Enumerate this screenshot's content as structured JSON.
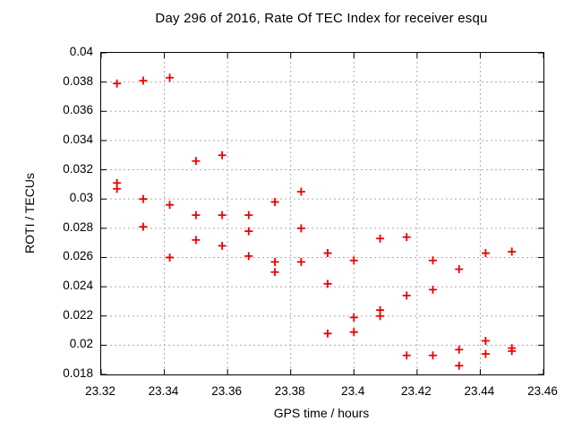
{
  "chart_data": {
    "type": "scatter",
    "title": "Day 296 of 2016, Rate Of TEC Index for receiver esqu",
    "xlabel": "GPS time / hours",
    "ylabel": "ROTI / TECUs",
    "xlim": [
      23.32,
      23.46
    ],
    "ylim": [
      0.018,
      0.04
    ],
    "x_tick_values": [
      23.32,
      23.34,
      23.36,
      23.38,
      23.4,
      23.42,
      23.44,
      23.46
    ],
    "x_tick_labels": [
      "23.32",
      "23.34",
      "23.36",
      "23.38",
      "23.4",
      "23.42",
      "23.44",
      "23.46"
    ],
    "y_tick_values": [
      0.04,
      0.038,
      0.036,
      0.034,
      0.032,
      0.03,
      0.028,
      0.026,
      0.024,
      0.022,
      0.02,
      0.018
    ],
    "y_tick_labels": [
      "0.04",
      "0.038",
      "0.036",
      "0.034",
      "0.032",
      "0.03",
      "0.028",
      "0.026",
      "0.024",
      "0.022",
      "0.02",
      "0.018"
    ],
    "grid": true,
    "legend": "none",
    "marker": "plus",
    "marker_color": "#ee0000",
    "grid_color": "#ababab",
    "frame_color": "#000000",
    "series": [
      {
        "name": "ROTI",
        "points": [
          [
            23.325,
            0.0379
          ],
          [
            23.325,
            0.0311
          ],
          [
            23.325,
            0.0307
          ],
          [
            23.3333,
            0.0381
          ],
          [
            23.3333,
            0.03
          ],
          [
            23.3333,
            0.0281
          ],
          [
            23.3417,
            0.0383
          ],
          [
            23.3417,
            0.0296
          ],
          [
            23.3417,
            0.026
          ],
          [
            23.35,
            0.0326
          ],
          [
            23.35,
            0.0289
          ],
          [
            23.35,
            0.0272
          ],
          [
            23.3583,
            0.033
          ],
          [
            23.3583,
            0.0289
          ],
          [
            23.3583,
            0.0268
          ],
          [
            23.3667,
            0.0289
          ],
          [
            23.3667,
            0.0278
          ],
          [
            23.3667,
            0.0261
          ],
          [
            23.375,
            0.0298
          ],
          [
            23.375,
            0.0257
          ],
          [
            23.375,
            0.025
          ],
          [
            23.3833,
            0.0305
          ],
          [
            23.3833,
            0.028
          ],
          [
            23.3833,
            0.0257
          ],
          [
            23.3917,
            0.0263
          ],
          [
            23.3917,
            0.0242
          ],
          [
            23.3917,
            0.0208
          ],
          [
            23.4,
            0.0258
          ],
          [
            23.4,
            0.0219
          ],
          [
            23.4,
            0.0209
          ],
          [
            23.4083,
            0.0273
          ],
          [
            23.4083,
            0.0224
          ],
          [
            23.4083,
            0.022
          ],
          [
            23.4167,
            0.0274
          ],
          [
            23.4167,
            0.0234
          ],
          [
            23.4167,
            0.0193
          ],
          [
            23.425,
            0.0258
          ],
          [
            23.425,
            0.0238
          ],
          [
            23.425,
            0.0193
          ],
          [
            23.4333,
            0.0252
          ],
          [
            23.4333,
            0.0197
          ],
          [
            23.4333,
            0.0186
          ],
          [
            23.4417,
            0.0263
          ],
          [
            23.4417,
            0.0203
          ],
          [
            23.4417,
            0.0194
          ],
          [
            23.45,
            0.0264
          ],
          [
            23.45,
            0.0198
          ],
          [
            23.45,
            0.0196
          ]
        ]
      }
    ]
  }
}
